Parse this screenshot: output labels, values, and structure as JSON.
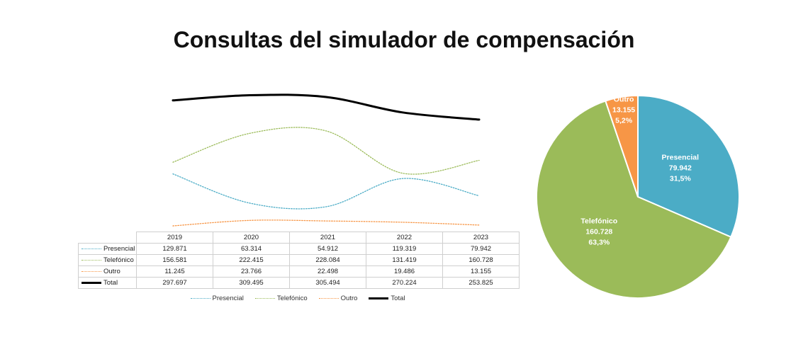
{
  "title": "Consultas del simulador de compensación",
  "chart_data": [
    {
      "type": "line",
      "x": [
        "2019",
        "2020",
        "2021",
        "2022",
        "2023"
      ],
      "series": [
        {
          "name": "Presencial",
          "values": [
            129871,
            63314,
            54912,
            119319,
            79942
          ],
          "labels": [
            "129.871",
            "63.314",
            "54.912",
            "119.319",
            "79.942"
          ],
          "color": "#4bacc6",
          "style": "dotted"
        },
        {
          "name": "Telefónico",
          "values": [
            156581,
            222415,
            228084,
            131419,
            160728
          ],
          "labels": [
            "156.581",
            "222.415",
            "228.084",
            "131.419",
            "160.728"
          ],
          "color": "#9bbb59",
          "style": "dotted"
        },
        {
          "name": "Outro",
          "values": [
            11245,
            23766,
            22498,
            19486,
            13155
          ],
          "labels": [
            "11.245",
            "23.766",
            "22.498",
            "19.486",
            "13.155"
          ],
          "color": "#f79646",
          "style": "dotted"
        },
        {
          "name": "Total",
          "values": [
            297697,
            309495,
            305494,
            270224,
            253825
          ],
          "labels": [
            "297.697",
            "309.495",
            "305.494",
            "270.224",
            "253.825"
          ],
          "color": "#000000",
          "style": "solid"
        }
      ],
      "ylim": [
        0,
        320000
      ],
      "grid": false,
      "data_table": true,
      "legend_position": "bottom"
    },
    {
      "type": "pie",
      "slices": [
        {
          "name": "Presencial",
          "value": 79942,
          "value_label": "79.942",
          "percent_label": "31,5%",
          "color": "#4bacc6"
        },
        {
          "name": "Telefónico",
          "value": 160728,
          "value_label": "160.728",
          "percent_label": "63,3%",
          "color": "#9bbb59"
        },
        {
          "name": "Outro",
          "value": 13155,
          "value_label": "13.155",
          "percent_label": "5,2%",
          "color": "#f79646"
        }
      ]
    }
  ]
}
